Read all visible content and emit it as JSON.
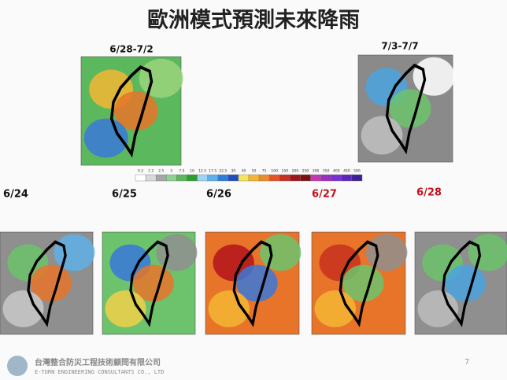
{
  "title": "歐洲模式預測未來降雨",
  "period_maps": [
    {
      "label": "6/28-7/2"
    },
    {
      "label": "7/3-7/7"
    }
  ],
  "colorbar": {
    "ticks": [
      0.2,
      1.2,
      2.5,
      5,
      7.5,
      10,
      12.5,
      17.5,
      22.5,
      30,
      40,
      50,
      75,
      100,
      150,
      200,
      250,
      300,
      350,
      400,
      450,
      500
    ]
  },
  "day_maps": [
    {
      "label": "6/24"
    },
    {
      "label": "6/25"
    },
    {
      "label": "6/26"
    },
    {
      "label": "6/27"
    },
    {
      "label": "6/28"
    }
  ],
  "footer": {
    "company_zh": "台灣整合防災工程技術顧問有限公司",
    "company_en": "E-TURN ENGINEERING CONSULTANTS CO., LTD",
    "page": "7"
  }
}
